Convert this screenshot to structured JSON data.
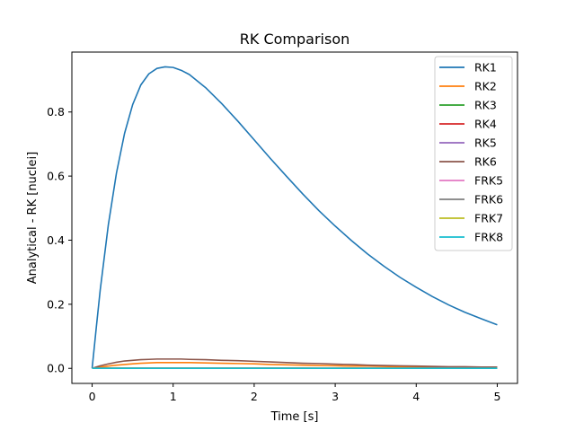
{
  "chart_data": {
    "type": "line",
    "title": "RK Comparison",
    "xlabel": "Time [s]",
    "ylabel": "Analytical - RK [nuclei]",
    "xlim": [
      -0.25,
      5.25
    ],
    "ylim": [
      -0.047,
      0.987
    ],
    "xticks": [
      0,
      1,
      2,
      3,
      4,
      5
    ],
    "xtick_labels": [
      "0",
      "1",
      "2",
      "3",
      "4",
      "5"
    ],
    "yticks": [
      0.0,
      0.2,
      0.4,
      0.6,
      0.8
    ],
    "ytick_labels": [
      "0.0",
      "0.2",
      "0.4",
      "0.6",
      "0.8"
    ],
    "grid": false,
    "legend_position": "top-right",
    "x": [
      0,
      0.05,
      0.1,
      0.2,
      0.3,
      0.4,
      0.5,
      0.6,
      0.7,
      0.8,
      0.9,
      1.0,
      1.1,
      1.2,
      1.4,
      1.6,
      1.8,
      2.0,
      2.2,
      2.4,
      2.6,
      2.8,
      3.0,
      3.2,
      3.4,
      3.6,
      3.8,
      4.0,
      4.2,
      4.4,
      4.6,
      4.8,
      5.0
    ],
    "series": [
      {
        "name": "RK1",
        "color": "#1f77b4",
        "values": [
          0.0,
          0.124,
          0.245,
          0.448,
          0.609,
          0.733,
          0.823,
          0.884,
          0.919,
          0.936,
          0.941,
          0.939,
          0.93,
          0.917,
          0.876,
          0.826,
          0.771,
          0.713,
          0.655,
          0.599,
          0.544,
          0.492,
          0.444,
          0.399,
          0.357,
          0.319,
          0.284,
          0.253,
          0.224,
          0.198,
          0.175,
          0.155,
          0.136
        ]
      },
      {
        "name": "RK2",
        "color": "#ff7f0e",
        "values": [
          0.0,
          0.002,
          0.004,
          0.007,
          0.01,
          0.012,
          0.014,
          0.016,
          0.017,
          0.018,
          0.018,
          0.018,
          0.018,
          0.018,
          0.017,
          0.016,
          0.015,
          0.014,
          0.012,
          0.011,
          0.01,
          0.009,
          0.008,
          0.007,
          0.007,
          0.006,
          0.005,
          0.005,
          0.004,
          0.004,
          0.003,
          0.003,
          0.003
        ]
      },
      {
        "name": "RK3",
        "color": "#2ca02c",
        "values": [
          0.0,
          0.0,
          0.0,
          0.001,
          0.001,
          0.001,
          0.001,
          0.001,
          0.001,
          0.001,
          0.001,
          0.001,
          0.001,
          0.001,
          0.001,
          0.001,
          0.001,
          0.001,
          0.001,
          0.001,
          0.001,
          0.0,
          0.0,
          0.0,
          0.0,
          0.0,
          0.0,
          0.0,
          0.0,
          0.0,
          0.0,
          0.0,
          0.0
        ]
      },
      {
        "name": "RK4",
        "color": "#d62728",
        "values": [
          0.0,
          0.0,
          0.0,
          0.0,
          0.0,
          0.0,
          0.0,
          0.0,
          0.0,
          0.0,
          0.0,
          0.0,
          0.0,
          0.0,
          0.0,
          0.0,
          0.0,
          0.0,
          0.0,
          0.0,
          0.0,
          0.0,
          0.0,
          0.0,
          0.0,
          0.0,
          0.0,
          0.0,
          0.0,
          0.0,
          0.0,
          0.0,
          0.0
        ]
      },
      {
        "name": "RK5",
        "color": "#9467bd",
        "values": [
          0.0,
          0.0,
          0.0,
          0.0,
          0.0,
          0.0,
          0.0,
          0.0,
          0.0,
          0.0,
          0.0,
          0.0,
          0.0,
          0.0,
          0.0,
          0.0,
          0.0,
          0.0,
          0.0,
          0.0,
          0.0,
          0.0,
          0.0,
          0.0,
          0.0,
          0.0,
          0.0,
          0.0,
          0.0,
          0.0,
          0.0,
          0.0,
          0.0
        ]
      },
      {
        "name": "RK6",
        "color": "#8c564b",
        "values": [
          0.0,
          0.004,
          0.008,
          0.014,
          0.019,
          0.023,
          0.025,
          0.027,
          0.028,
          0.029,
          0.029,
          0.029,
          0.029,
          0.028,
          0.027,
          0.025,
          0.024,
          0.022,
          0.02,
          0.018,
          0.016,
          0.015,
          0.013,
          0.012,
          0.01,
          0.009,
          0.008,
          0.007,
          0.006,
          0.005,
          0.005,
          0.004,
          0.004
        ]
      },
      {
        "name": "FRK5",
        "color": "#e377c2",
        "values": [
          0.0,
          0.0,
          0.0,
          0.0,
          0.0,
          0.0,
          0.0,
          0.0,
          0.0,
          0.0,
          0.0,
          0.0,
          0.0,
          0.0,
          0.0,
          0.0,
          0.0,
          0.0,
          0.0,
          0.0,
          0.0,
          0.0,
          0.0,
          0.0,
          0.0,
          0.0,
          0.0,
          0.0,
          0.0,
          0.0,
          0.0,
          0.0,
          0.0
        ]
      },
      {
        "name": "FRK6",
        "color": "#7f7f7f",
        "values": [
          0.0,
          0.0,
          0.0,
          0.0,
          0.0,
          0.0,
          0.0,
          0.0,
          0.0,
          0.0,
          0.0,
          0.0,
          0.0,
          0.0,
          0.0,
          0.0,
          0.0,
          0.0,
          0.0,
          0.0,
          0.0,
          0.0,
          0.0,
          0.0,
          0.0,
          0.0,
          0.0,
          0.0,
          0.0,
          0.0,
          0.0,
          0.0,
          0.0
        ]
      },
      {
        "name": "FRK7",
        "color": "#bcbd22",
        "values": [
          0.0,
          0.0,
          0.0,
          0.0,
          0.0,
          0.0,
          0.0,
          0.0,
          0.0,
          0.0,
          0.0,
          0.0,
          0.0,
          0.0,
          0.0,
          0.0,
          0.0,
          0.0,
          0.0,
          0.0,
          0.0,
          0.0,
          0.0,
          0.0,
          0.0,
          0.0,
          0.0,
          0.0,
          0.0,
          0.0,
          0.0,
          0.0,
          0.0
        ]
      },
      {
        "name": "FRK8",
        "color": "#17becf",
        "values": [
          0.0,
          0.0,
          0.0,
          0.0,
          0.0,
          0.0,
          0.0,
          0.0,
          0.0,
          0.0,
          0.0,
          0.0,
          0.0,
          0.0,
          0.0,
          0.0,
          0.0,
          0.0,
          0.0,
          0.0,
          0.0,
          0.0,
          0.0,
          0.0,
          0.0,
          0.0,
          0.0,
          0.0,
          0.0,
          0.0,
          0.0,
          0.0,
          0.0
        ]
      }
    ]
  }
}
